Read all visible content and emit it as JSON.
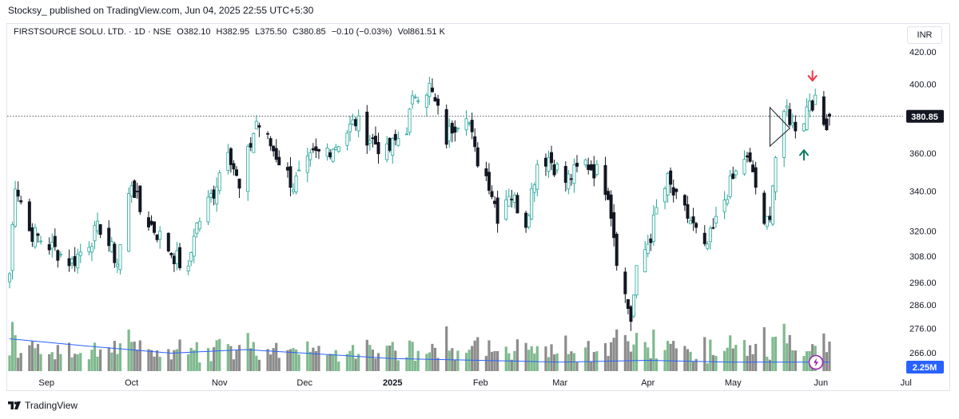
{
  "publish_line": "Stocksy_ published on TradingView.com, Jun 04, 2025 22:55 UTC+5:30",
  "legend": {
    "symbol": "FIRSTSOURCE SOLU. LTD. · 1D · NSE",
    "open": "O382.10",
    "high": "H382.95",
    "low": "L375.50",
    "close": "C380.85",
    "change": "−0.10 (−0.03%)",
    "volume": "Vol861.51 K"
  },
  "currency_label": "INR",
  "footer_brand": "TradingView",
  "colors": {
    "up": "#26a69a",
    "down": "#131722",
    "vol_up": "#7fb98e",
    "vol_down": "#8c8c8c",
    "vol_ma": "#2962ff",
    "last_price_bg": "#131722",
    "vol_badge_bg": "#2962ff",
    "arrow_up": "#0b7b5f",
    "arrow_down": "#f23645",
    "alert": "#9c27b0"
  },
  "chart_data": {
    "type": "candlestick",
    "price_axis": {
      "scale": "log",
      "ticks": [
        420,
        400,
        380,
        360,
        340,
        320,
        308,
        296,
        286,
        276,
        266
      ]
    },
    "price_tick_labels": [
      "420.00",
      "400.00",
      "360.00",
      "340.00",
      "320.00",
      "308.00",
      "296.00",
      "286.00",
      "276.00",
      "266.00"
    ],
    "last_price": {
      "value": 380.85,
      "label": "380.85"
    },
    "volume_label": "2.25M",
    "x_axis": {
      "start": "2025-08-14",
      "labels": [
        {
          "text": "Sep",
          "date": "2024-09-01"
        },
        {
          "text": "Oct",
          "date": "2024-10-01"
        },
        {
          "text": "Nov",
          "date": "2024-11-01"
        },
        {
          "text": "Dec",
          "date": "2024-12-01"
        },
        {
          "text": "2025",
          "date": "2025-01-01"
        },
        {
          "text": "Feb",
          "date": "2025-02-01"
        },
        {
          "text": "Mar",
          "date": "2025-03-01"
        },
        {
          "text": "Apr",
          "date": "2025-04-01"
        },
        {
          "text": "May",
          "date": "2025-05-01"
        },
        {
          "text": "Jun",
          "date": "2025-06-01"
        },
        {
          "text": "Jul",
          "date": "2025-07-01"
        }
      ]
    },
    "anchors": [
      {
        "date": "2024-08-19",
        "close": 300
      },
      {
        "date": "2024-08-21",
        "close": 345
      },
      {
        "date": "2024-08-26",
        "close": 320
      },
      {
        "date": "2024-09-05",
        "close": 310
      },
      {
        "date": "2024-09-10",
        "close": 305
      },
      {
        "date": "2024-09-20",
        "close": 322
      },
      {
        "date": "2024-09-26",
        "close": 305
      },
      {
        "date": "2024-10-01",
        "close": 345
      },
      {
        "date": "2024-10-04",
        "close": 330
      },
      {
        "date": "2024-10-15",
        "close": 310
      },
      {
        "date": "2024-10-21",
        "close": 300
      },
      {
        "date": "2024-10-23",
        "close": 320
      },
      {
        "date": "2024-10-30",
        "close": 340
      },
      {
        "date": "2024-11-04",
        "close": 365
      },
      {
        "date": "2024-11-08",
        "close": 340
      },
      {
        "date": "2024-11-14",
        "close": 378
      },
      {
        "date": "2024-11-20",
        "close": 362
      },
      {
        "date": "2024-11-27",
        "close": 343
      },
      {
        "date": "2024-12-04",
        "close": 358
      },
      {
        "date": "2024-12-12",
        "close": 365
      },
      {
        "date": "2024-12-19",
        "close": 378
      },
      {
        "date": "2024-12-23",
        "close": 370
      },
      {
        "date": "2024-12-30",
        "close": 360
      },
      {
        "date": "2025-01-06",
        "close": 375
      },
      {
        "date": "2025-01-09",
        "close": 395
      },
      {
        "date": "2025-01-14",
        "close": 398
      },
      {
        "date": "2025-01-20",
        "close": 368
      },
      {
        "date": "2025-01-22",
        "close": 375
      },
      {
        "date": "2025-01-27",
        "close": 385
      },
      {
        "date": "2025-01-30",
        "close": 360
      },
      {
        "date": "2025-02-04",
        "close": 345
      },
      {
        "date": "2025-02-07",
        "close": 328
      },
      {
        "date": "2025-02-11",
        "close": 340
      },
      {
        "date": "2025-02-17",
        "close": 325
      },
      {
        "date": "2025-02-21",
        "close": 355
      },
      {
        "date": "2025-02-25",
        "close": 358
      },
      {
        "date": "2025-03-03",
        "close": 345
      },
      {
        "date": "2025-03-10",
        "close": 355
      },
      {
        "date": "2025-03-14",
        "close": 350
      },
      {
        "date": "2025-03-18",
        "close": 340
      },
      {
        "date": "2025-03-21",
        "close": 308
      },
      {
        "date": "2025-03-24",
        "close": 290
      },
      {
        "date": "2025-03-26",
        "close": 280
      },
      {
        "date": "2025-03-28",
        "close": 300
      },
      {
        "date": "2025-04-02",
        "close": 318
      },
      {
        "date": "2025-04-04",
        "close": 330
      },
      {
        "date": "2025-04-08",
        "close": 345
      },
      {
        "date": "2025-04-11",
        "close": 335
      },
      {
        "date": "2025-04-16",
        "close": 325
      },
      {
        "date": "2025-04-21",
        "close": 310
      },
      {
        "date": "2025-04-24",
        "close": 320
      },
      {
        "date": "2025-04-29",
        "close": 340
      },
      {
        "date": "2025-05-05",
        "close": 358
      },
      {
        "date": "2025-05-08",
        "close": 350
      },
      {
        "date": "2025-05-12",
        "close": 320
      },
      {
        "date": "2025-05-14",
        "close": 330
      },
      {
        "date": "2025-05-16",
        "close": 358
      },
      {
        "date": "2025-05-20",
        "close": 385
      },
      {
        "date": "2025-05-22",
        "close": 375
      },
      {
        "date": "2025-05-26",
        "close": 380
      },
      {
        "date": "2025-05-28",
        "close": 392
      },
      {
        "date": "2025-05-30",
        "close": 388
      },
      {
        "date": "2025-06-02",
        "close": 376
      },
      {
        "date": "2025-06-04",
        "close": 380.85
      }
    ],
    "volume_ma_points": [
      {
        "date": "2024-08-19",
        "value": 0.9
      },
      {
        "date": "2024-09-15",
        "value": 0.7
      },
      {
        "date": "2024-10-15",
        "value": 0.5
      },
      {
        "date": "2024-11-10",
        "value": 0.6
      },
      {
        "date": "2024-12-01",
        "value": 0.5
      },
      {
        "date": "2025-01-01",
        "value": 0.35
      },
      {
        "date": "2025-02-01",
        "value": 0.3
      },
      {
        "date": "2025-03-01",
        "value": 0.25
      },
      {
        "date": "2025-04-01",
        "value": 0.3
      },
      {
        "date": "2025-05-01",
        "value": 0.25
      },
      {
        "date": "2025-06-04",
        "value": 0.25
      }
    ],
    "annotations": [
      {
        "kind": "arrow-down",
        "date": "2025-05-29",
        "price": 404
      },
      {
        "kind": "arrow-up",
        "date": "2025-05-26",
        "price": 360
      },
      {
        "kind": "pennant",
        "date_start": "2025-05-14",
        "date_end": "2025-05-21",
        "top": 386,
        "bottom": 364,
        "apex": 374
      }
    ]
  }
}
